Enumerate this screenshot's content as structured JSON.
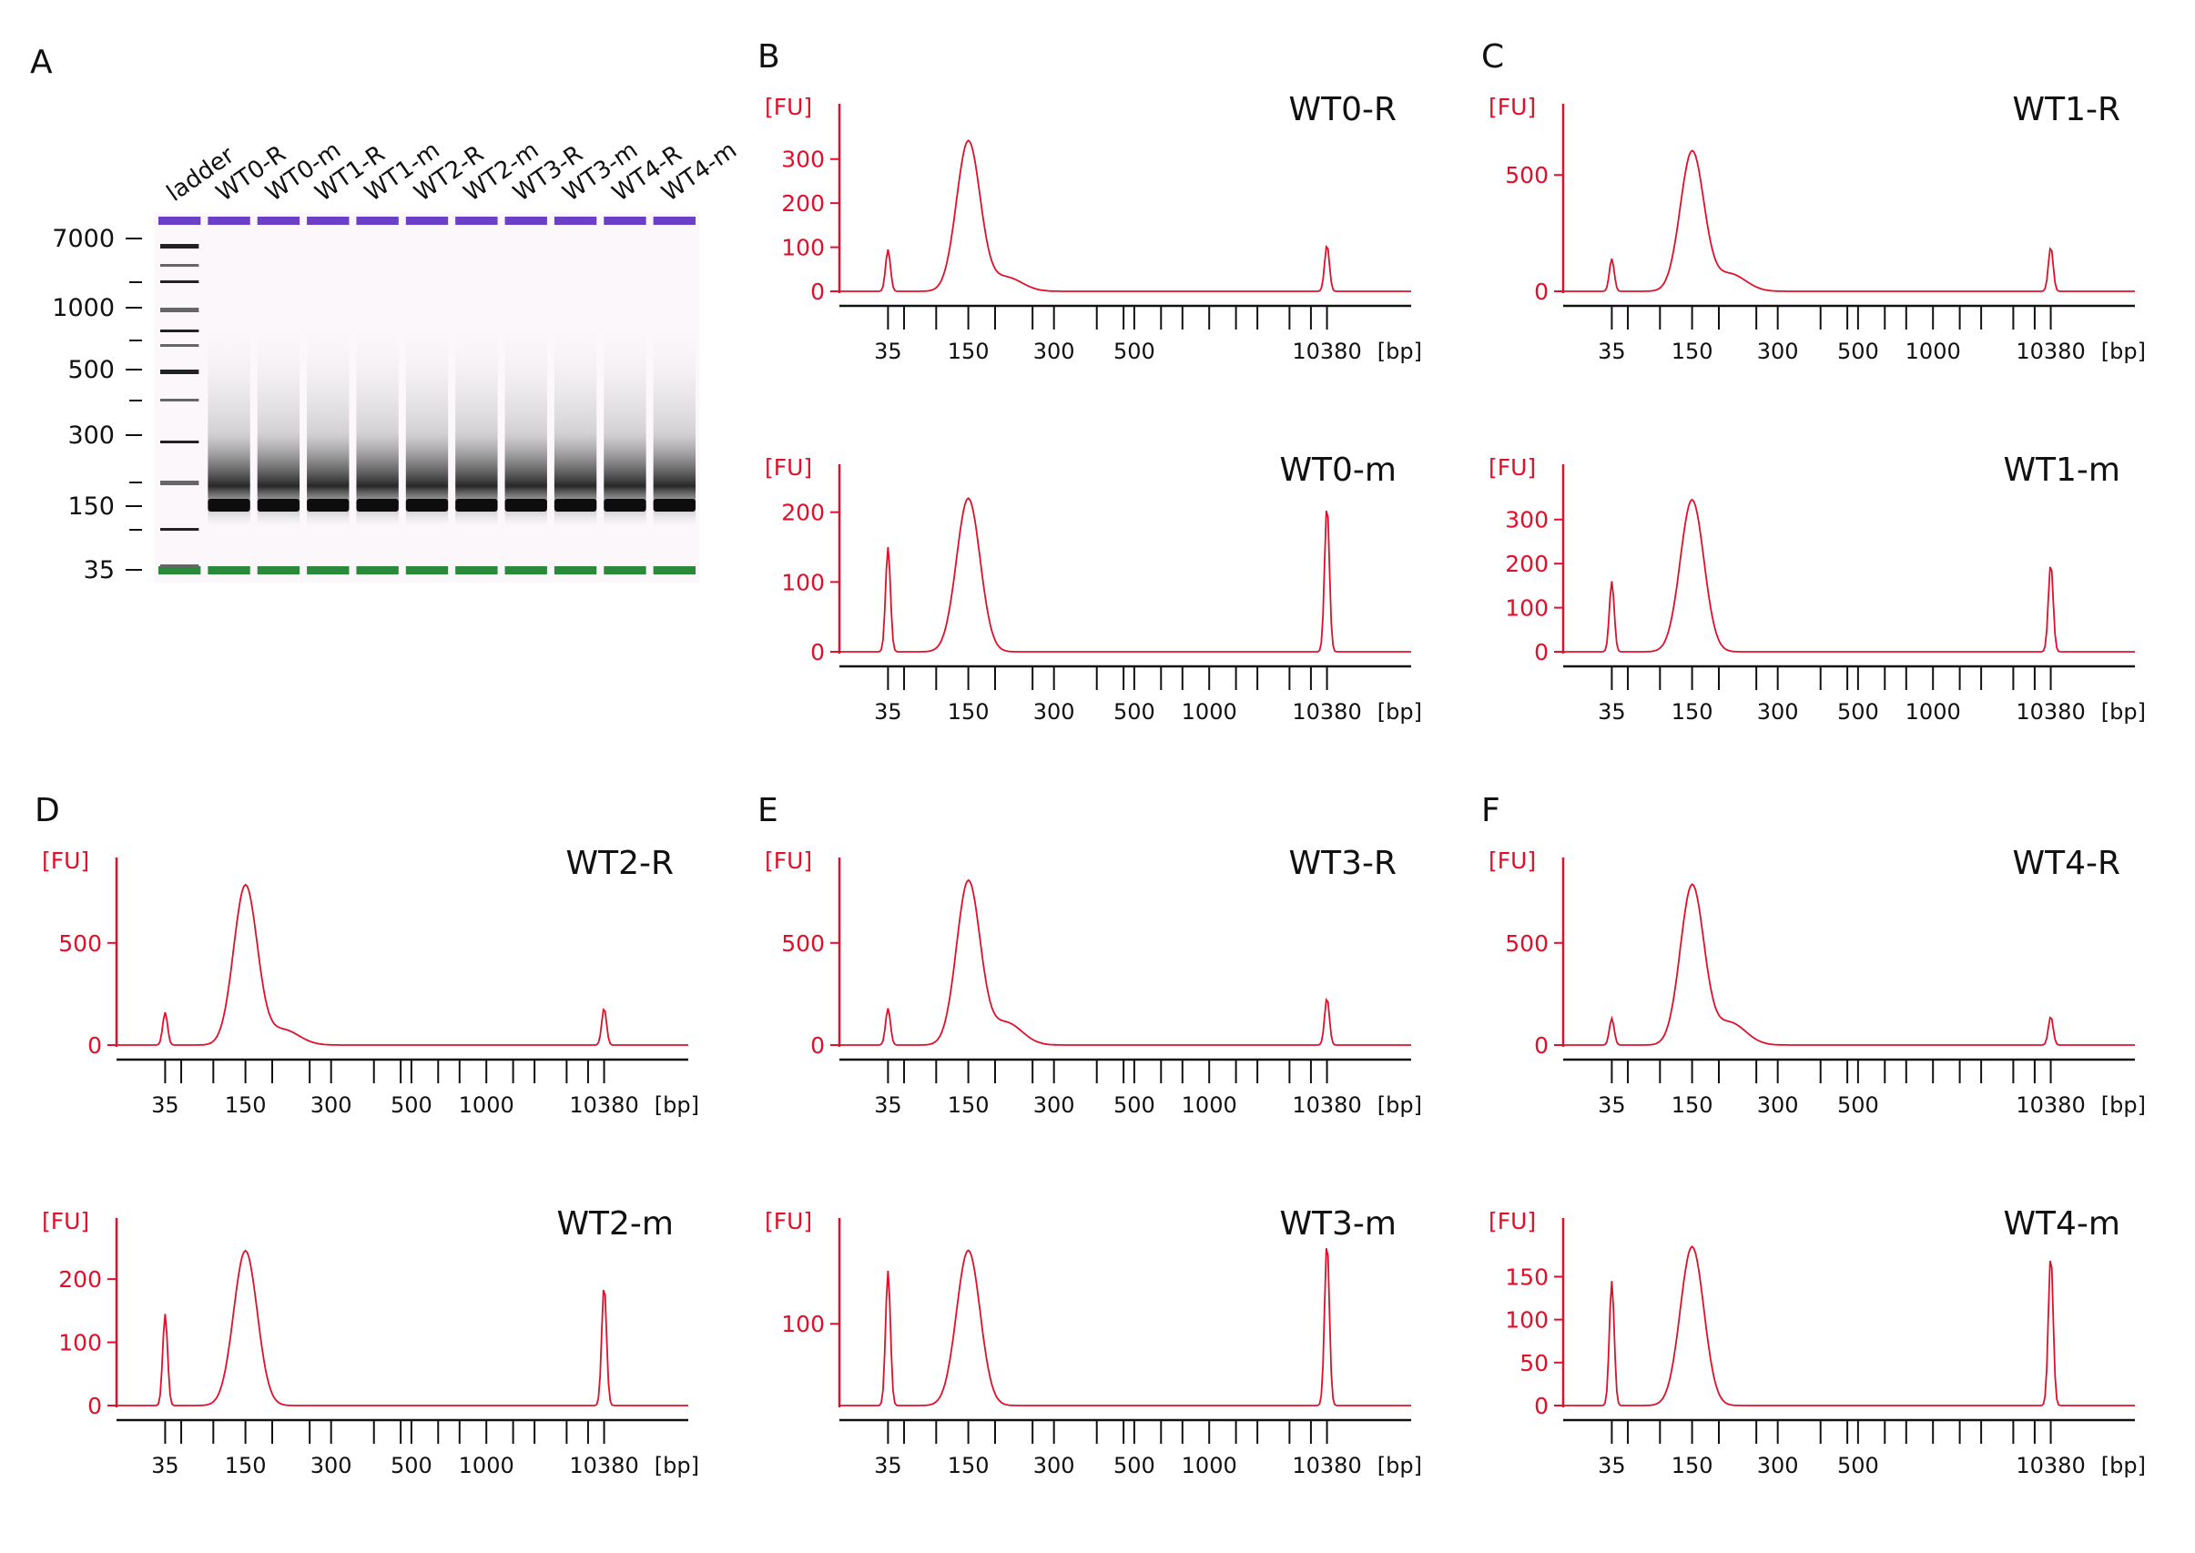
{
  "gel": {
    "panel": "A",
    "lanes": [
      "ladder",
      "WT0-R",
      "WT0-m",
      "WT1-R",
      "WT1-m",
      "WT2-R",
      "WT2-m",
      "WT3-R",
      "WT3-m",
      "WT4-R",
      "WT4-m"
    ],
    "size_labels": [
      "7000",
      "1000",
      "500",
      "300",
      "150",
      "35"
    ],
    "upper_marker_color": "#6b3fc6",
    "lower_marker_color": "#2a8a3a"
  },
  "chart_data": [
    {
      "type": "line",
      "panel": "B",
      "title": "WT0-R",
      "ylabel": "[FU]",
      "xlabel": "[bp]",
      "yticks": [
        "0",
        "100",
        "200",
        "300"
      ],
      "ylim": [
        0,
        380
      ],
      "xticks": [
        "35",
        "150",
        "300",
        "500",
        "10380"
      ],
      "peaks": [
        {
          "bp": 35,
          "fu": 95
        },
        {
          "bp": 150,
          "fu": 340
        },
        {
          "bp": 10380,
          "fu": 105
        }
      ],
      "shoulder_fu": 32
    },
    {
      "type": "line",
      "panel": "C",
      "title": "WT1-R",
      "ylabel": "[FU]",
      "xlabel": "[bp]",
      "yticks": [
        "0",
        "500"
      ],
      "ylim": [
        0,
        720
      ],
      "xticks": [
        "35",
        "150",
        "300",
        "500",
        "1000",
        "10380"
      ],
      "peaks": [
        {
          "bp": 35,
          "fu": 140
        },
        {
          "bp": 150,
          "fu": 600
        },
        {
          "bp": 10380,
          "fu": 190
        }
      ],
      "shoulder_fu": 75
    },
    {
      "type": "line",
      "panel": "B",
      "title": "WT0-m",
      "ylabel": "[FU]",
      "xlabel": "[bp]",
      "yticks": [
        "0",
        "100",
        "200"
      ],
      "ylim": [
        0,
        240
      ],
      "xticks": [
        "35",
        "150",
        "300",
        "500",
        "1000",
        "10380"
      ],
      "peaks": [
        {
          "bp": 35,
          "fu": 150
        },
        {
          "bp": 150,
          "fu": 220
        },
        {
          "bp": 10380,
          "fu": 210
        }
      ],
      "shoulder_fu": 0
    },
    {
      "type": "line",
      "panel": "C",
      "title": "WT1-m",
      "ylabel": "[FU]",
      "xlabel": "[bp]",
      "yticks": [
        "0",
        "100",
        "200",
        "300"
      ],
      "ylim": [
        0,
        380
      ],
      "xticks": [
        "35",
        "150",
        "300",
        "500",
        "1000",
        "10380"
      ],
      "peaks": [
        {
          "bp": 35,
          "fu": 160
        },
        {
          "bp": 150,
          "fu": 345
        },
        {
          "bp": 10380,
          "fu": 200
        }
      ],
      "shoulder_fu": 0
    },
    {
      "type": "line",
      "panel": "D",
      "title": "WT2-R",
      "ylabel": "[FU]",
      "xlabel": "[bp]",
      "yticks": [
        "0",
        "500"
      ],
      "ylim": [
        0,
        820
      ],
      "xticks": [
        "35",
        "150",
        "300",
        "500",
        "1000",
        "10380"
      ],
      "peaks": [
        {
          "bp": 35,
          "fu": 160
        },
        {
          "bp": 150,
          "fu": 780
        },
        {
          "bp": 10380,
          "fu": 180
        }
      ],
      "shoulder_fu": 75
    },
    {
      "type": "line",
      "panel": "E",
      "title": "WT3-R",
      "ylabel": "[FU]",
      "xlabel": "[bp]",
      "yticks": [
        "0",
        "500"
      ],
      "ylim": [
        0,
        820
      ],
      "xticks": [
        "35",
        "150",
        "300",
        "500",
        "1000",
        "10380"
      ],
      "peaks": [
        {
          "bp": 35,
          "fu": 180
        },
        {
          "bp": 150,
          "fu": 800
        },
        {
          "bp": 10380,
          "fu": 230
        }
      ],
      "shoulder_fu": 110
    },
    {
      "type": "line",
      "panel": "F",
      "title": "WT4-R",
      "ylabel": "[FU]",
      "xlabel": "[bp]",
      "yticks": [
        "0",
        "500"
      ],
      "ylim": [
        0,
        820
      ],
      "xticks": [
        "35",
        "150",
        "300",
        "500",
        "10380"
      ],
      "peaks": [
        {
          "bp": 35,
          "fu": 130
        },
        {
          "bp": 150,
          "fu": 780
        },
        {
          "bp": 10380,
          "fu": 140
        }
      ],
      "shoulder_fu": 110
    },
    {
      "type": "line",
      "panel": "D",
      "title": "WT2-m",
      "ylabel": "[FU]",
      "xlabel": "[bp]",
      "yticks": [
        "0",
        "100",
        "200"
      ],
      "ylim": [
        0,
        265
      ],
      "xticks": [
        "35",
        "150",
        "300",
        "500",
        "1000",
        "10380"
      ],
      "peaks": [
        {
          "bp": 35,
          "fu": 145
        },
        {
          "bp": 150,
          "fu": 245
        },
        {
          "bp": 10380,
          "fu": 190
        }
      ],
      "shoulder_fu": 0
    },
    {
      "type": "line",
      "panel": "E",
      "title": "WT3-m",
      "ylabel": "[FU]",
      "xlabel": "[bp]",
      "yticks": [
        "100"
      ],
      "ylim": [
        0,
        205
      ],
      "xticks": [
        "35",
        "150",
        "300",
        "500",
        "1000",
        "10380"
      ],
      "peaks": [
        {
          "bp": 35,
          "fu": 165
        },
        {
          "bp": 150,
          "fu": 190
        },
        {
          "bp": 10380,
          "fu": 200
        }
      ],
      "shoulder_fu": 0
    },
    {
      "type": "line",
      "panel": "F",
      "title": "WT4-m",
      "ylabel": "[FU]",
      "xlabel": "[bp]",
      "yticks": [
        "0",
        "50",
        "100",
        "150"
      ],
      "ylim": [
        0,
        195
      ],
      "xticks": [
        "35",
        "150",
        "300",
        "500",
        "10380"
      ],
      "peaks": [
        {
          "bp": 35,
          "fu": 145
        },
        {
          "bp": 150,
          "fu": 185
        },
        {
          "bp": 10380,
          "fu": 175
        }
      ],
      "shoulder_fu": 0
    }
  ]
}
